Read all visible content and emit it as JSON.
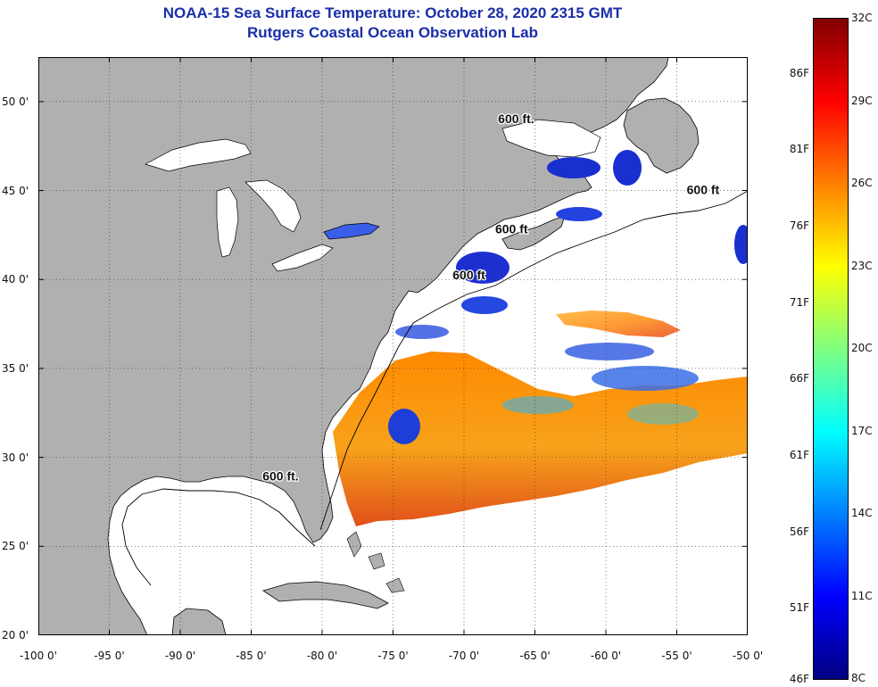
{
  "title": {
    "line1": "NOAA-15 Sea Surface Temperature:  October 28, 2020 2315 GMT",
    "line2": "Rutgers Coastal Ocean Observation Lab"
  },
  "map": {
    "lon_range": [
      -100,
      -50
    ],
    "lat_range": [
      20,
      52.5
    ],
    "lon_ticks": [
      {
        "value": -100,
        "label": "-100 0'"
      },
      {
        "value": -95,
        "label": "-95 0'"
      },
      {
        "value": -90,
        "label": "-90 0'"
      },
      {
        "value": -85,
        "label": "-85 0'"
      },
      {
        "value": -80,
        "label": "-80 0'"
      },
      {
        "value": -75,
        "label": "-75 0'"
      },
      {
        "value": -70,
        "label": "-70 0'"
      },
      {
        "value": -65,
        "label": "-65 0'"
      },
      {
        "value": -60,
        "label": "-60 0'"
      },
      {
        "value": -55,
        "label": "-55 0'"
      },
      {
        "value": -50,
        "label": "-50 0'"
      }
    ],
    "lat_ticks": [
      {
        "value": 50,
        "label": "50 0'"
      },
      {
        "value": 45,
        "label": "45 0'"
      },
      {
        "value": 40,
        "label": "40 0'"
      },
      {
        "value": 35,
        "label": "35 0'"
      },
      {
        "value": 30,
        "label": "30 0'"
      },
      {
        "value": 25,
        "label": "25 0'"
      },
      {
        "value": 20,
        "label": "20 0'"
      }
    ],
    "grid": "dotted",
    "land_color": "#b0b0b0",
    "water_color": "#ffffff",
    "contour_labels": [
      {
        "text": "600 ft.",
        "lon": -67.6,
        "lat": 48.8
      },
      {
        "text": "600 ft",
        "lon": -54.3,
        "lat": 44.8
      },
      {
        "text": "600 ft",
        "lon": -67.8,
        "lat": 42.6
      },
      {
        "text": "600 ft",
        "lon": -70.8,
        "lat": 40.0
      },
      {
        "text": "600 ft.",
        "lon": -84.2,
        "lat": 28.7
      }
    ]
  },
  "colorbar": {
    "colors": [
      "#000080",
      "#0000ff",
      "#0080ff",
      "#00ffff",
      "#80ff80",
      "#ffff00",
      "#ff8000",
      "#ff0000",
      "#800000"
    ],
    "celsius_labels": [
      {
        "value": 32,
        "label": "32C"
      },
      {
        "value": 29,
        "label": "29C"
      },
      {
        "value": 26,
        "label": "26C"
      },
      {
        "value": 23,
        "label": "23C"
      },
      {
        "value": 20,
        "label": "20C"
      },
      {
        "value": 17,
        "label": "17C"
      },
      {
        "value": 14,
        "label": "14C"
      },
      {
        "value": 11,
        "label": "11C"
      },
      {
        "value": 8,
        "label": "8C"
      }
    ],
    "fahrenheit_labels": [
      {
        "value": 86,
        "label": "86F"
      },
      {
        "value": 81,
        "label": "81F"
      },
      {
        "value": 76,
        "label": "76F"
      },
      {
        "value": 71,
        "label": "71F"
      },
      {
        "value": 66,
        "label": "66F"
      },
      {
        "value": 61,
        "label": "61F"
      },
      {
        "value": 56,
        "label": "56F"
      },
      {
        "value": 51,
        "label": "51F"
      },
      {
        "value": 46,
        "label": "46F"
      }
    ]
  }
}
